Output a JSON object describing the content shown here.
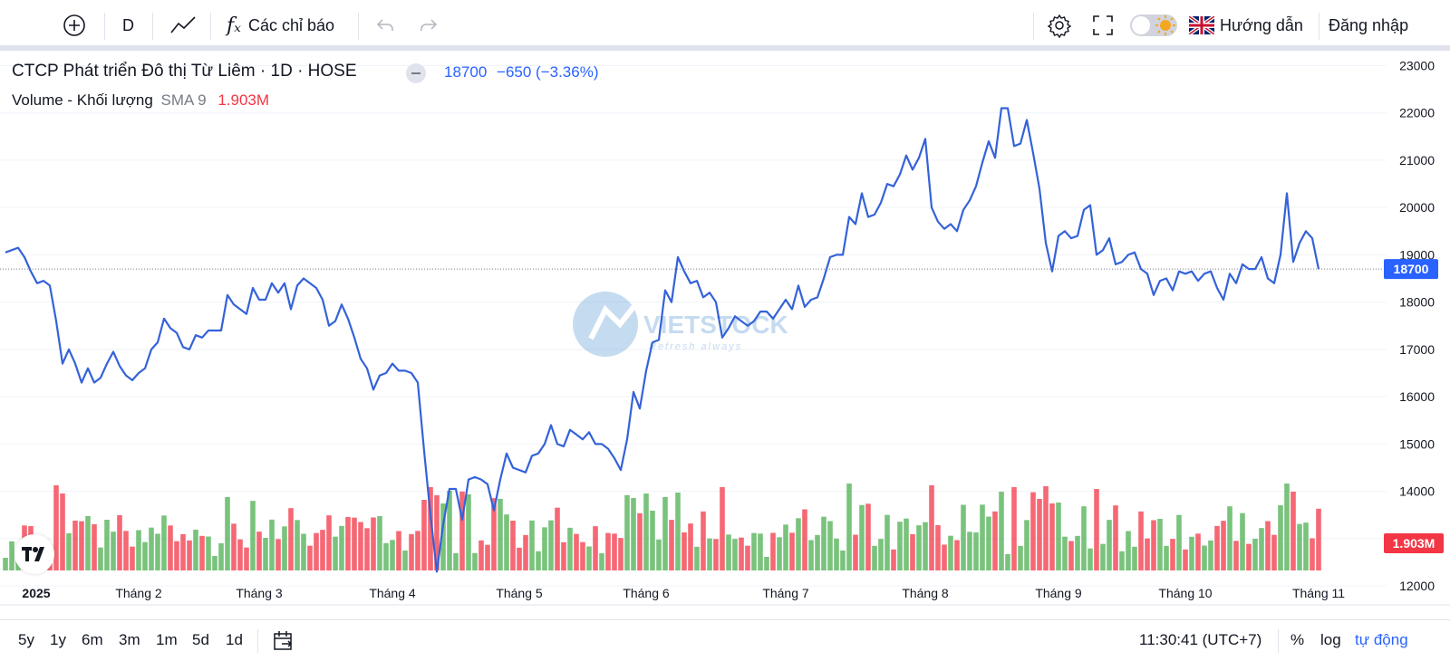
{
  "toolbar": {
    "interval": "D",
    "indicators_label": "Các chỉ báo",
    "guide_label": "Hướng dẫn",
    "login_label": "Đăng nhập"
  },
  "legend": {
    "title": "CTCP Phát triển Đô thị Từ Liêm · 1D · HOSE",
    "price": "18700",
    "change": "−650 (−3.36%)",
    "volume_label": "Volume - Khối lượng",
    "sma_label": "SMA 9",
    "volume_value": "1.903M"
  },
  "watermark": {
    "text": "VIETSTOCK",
    "tagline": "Refresh always"
  },
  "bottom": {
    "ranges": [
      "5y",
      "1y",
      "6m",
      "3m",
      "1m",
      "5d",
      "1d"
    ],
    "time": "11:30:41 (UTC+7)",
    "percent_label": "%",
    "log_label": "log",
    "auto_label": "tự động"
  },
  "colors": {
    "line": "#2962ff",
    "line_chart": "#3462d8",
    "up": "#4caf50",
    "down": "#f23645",
    "last_price_bg": "#2962ff",
    "last_volume_bg": "#f23645"
  },
  "chart_data": {
    "type": "line",
    "price_axis": {
      "ticks": [
        12000,
        13000,
        14000,
        15000,
        16000,
        17000,
        18000,
        19000,
        20000,
        21000,
        22000,
        23000
      ],
      "ylim": [
        11600,
        23200
      ],
      "last_price": 18700,
      "last_price_label": "18700"
    },
    "volume": {
      "last_label": "1.903M",
      "max_value_m": 3.0
    },
    "x_labels": [
      "2025",
      "Tháng 2",
      "Tháng 3",
      "Tháng 4",
      "Tháng 5",
      "Tháng 6",
      "Tháng 7",
      "Tháng 8",
      "Tháng 9",
      "Tháng 10",
      "Tháng 11"
    ],
    "x_label_index": [
      0,
      21,
      40,
      61,
      81,
      101,
      123,
      145,
      166,
      186,
      207
    ],
    "series": [
      {
        "values": [
          19050,
          19100,
          19150,
          18950,
          18650,
          18400,
          18450,
          18350,
          17600,
          16700,
          17000,
          16700,
          16300,
          16600,
          16300,
          16400,
          16700,
          16950,
          16650,
          16450,
          16350,
          16500,
          16600,
          17000,
          17150,
          17650,
          17450,
          17350,
          17050,
          17000,
          17300,
          17250,
          17400,
          17400,
          17400,
          18150,
          17950,
          17850,
          17750,
          18300,
          18050,
          18050,
          18400,
          18200,
          18400,
          17850,
          18350,
          18500,
          18400,
          18300,
          18050,
          17500,
          17600,
          17950,
          17650,
          17250,
          16800,
          16600,
          16150,
          16450,
          16500,
          16700,
          16550,
          16550,
          16500,
          16300,
          14850,
          13500,
          12300,
          13300,
          14050,
          14050,
          13400,
          14250,
          14300,
          14250,
          14150,
          13600,
          14250,
          14800,
          14500,
          14450,
          14400,
          14750,
          14800,
          15000,
          15400,
          15000,
          14950,
          15300,
          15200,
          15100,
          15250,
          15000,
          15000,
          14900,
          14700,
          14450,
          15100,
          16100,
          15750,
          16550,
          17150,
          17200,
          18250,
          18000,
          18950,
          18650,
          18400,
          18450,
          18100,
          18200,
          18000,
          17250,
          17450,
          17700,
          17600,
          17500,
          17600,
          17800,
          17800,
          17650,
          17850,
          18050,
          17850,
          18350,
          17900,
          18050,
          18100,
          18500,
          18950,
          19000,
          19000,
          19800,
          19650,
          20300,
          19800,
          19850,
          20100,
          20500,
          20450,
          20700,
          21100,
          20800,
          21050,
          21450,
          20000,
          19700,
          19550,
          19650,
          19500,
          19950,
          20150,
          20450,
          20950,
          21400,
          21050,
          22100,
          22100,
          21300,
          21350,
          21850,
          21150,
          20400,
          19250,
          18650,
          19400,
          19500,
          19350,
          19400,
          19950,
          20050,
          19000,
          19100,
          19350,
          18800,
          18850,
          19000,
          19050,
          18700,
          18600,
          18150,
          18450,
          18500,
          18250,
          18650,
          18600,
          18650,
          18450,
          18600,
          18650,
          18300,
          18050,
          18600,
          18400,
          18800,
          18700,
          18700,
          18950,
          18500,
          18400,
          19000,
          20300,
          18850,
          19250,
          19500,
          19350,
          18700
        ]
      }
    ]
  }
}
